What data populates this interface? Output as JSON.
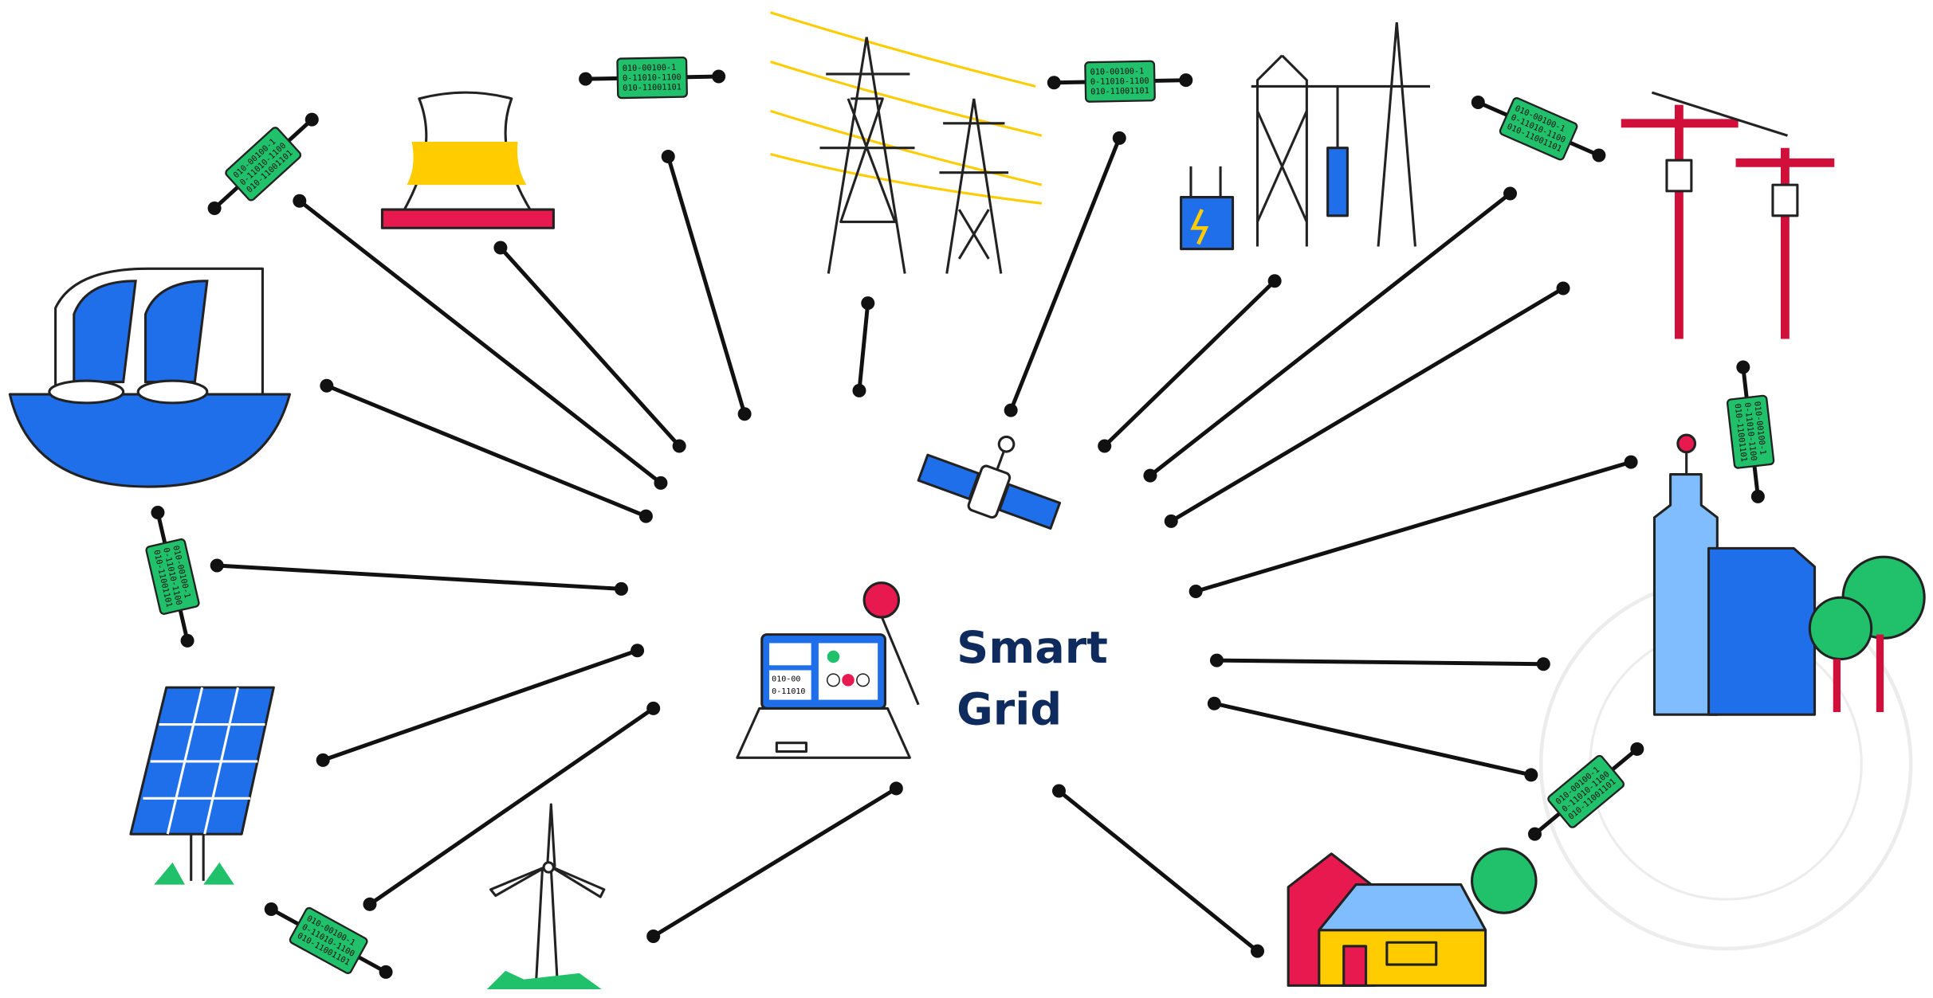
{
  "title": {
    "line1": "Smart",
    "line2": "Grid"
  },
  "data_packet": {
    "lines": [
      "010-00100-1",
      "0-11010-1100",
      "010-11001101"
    ]
  },
  "control_panel": {
    "screen_lines": [
      "010-00",
      "0-11010"
    ]
  }
}
